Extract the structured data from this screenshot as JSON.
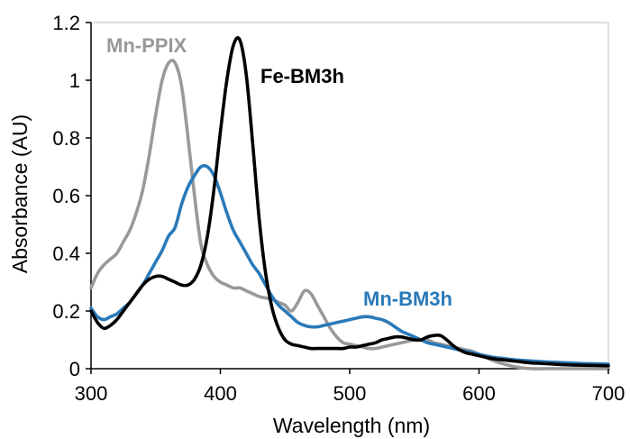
{
  "chart_data": {
    "type": "line",
    "title": "",
    "xlabel": "Wavelength (nm)",
    "ylabel": "Absorbance (AU)",
    "xlim": [
      300,
      700
    ],
    "ylim": [
      0,
      1.2
    ],
    "x_ticks": [
      300,
      400,
      500,
      600,
      700
    ],
    "y_ticks": [
      0,
      0.2,
      0.4,
      0.6,
      0.8,
      1.0,
      1.2
    ],
    "x_tick_labels": [
      "300",
      "400",
      "500",
      "600",
      "700"
    ],
    "y_tick_labels": [
      "0",
      "0.2",
      "0.4",
      "0.6",
      "0.8",
      "1",
      "1.2"
    ],
    "grid": false,
    "legend": "inline labels",
    "series": [
      {
        "name": "Mn-PPIX",
        "color": "#999999",
        "label_color": "#999999",
        "x": [
          300,
          305,
          310,
          315,
          320,
          325,
          330,
          335,
          340,
          345,
          350,
          355,
          360,
          365,
          370,
          375,
          380,
          385,
          390,
          395,
          400,
          405,
          410,
          415,
          420,
          425,
          430,
          435,
          440,
          445,
          450,
          455,
          460,
          465,
          470,
          475,
          480,
          485,
          490,
          495,
          500,
          505,
          510,
          515,
          520,
          525,
          530,
          535,
          540,
          545,
          550,
          555,
          560,
          565,
          570,
          575,
          580,
          585,
          590,
          595,
          600,
          610,
          620,
          630,
          640,
          650,
          660,
          670,
          680,
          690,
          700
        ],
        "y": [
          0.28,
          0.33,
          0.36,
          0.38,
          0.4,
          0.44,
          0.48,
          0.54,
          0.62,
          0.74,
          0.88,
          1.0,
          1.06,
          1.06,
          0.98,
          0.8,
          0.6,
          0.43,
          0.36,
          0.32,
          0.3,
          0.29,
          0.28,
          0.28,
          0.27,
          0.26,
          0.25,
          0.245,
          0.24,
          0.23,
          0.22,
          0.2,
          0.23,
          0.27,
          0.26,
          0.22,
          0.18,
          0.14,
          0.11,
          0.09,
          0.085,
          0.08,
          0.075,
          0.07,
          0.07,
          0.075,
          0.08,
          0.085,
          0.09,
          0.095,
          0.1,
          0.1,
          0.1,
          0.09,
          0.085,
          0.08,
          0.075,
          0.07,
          0.065,
          0.06,
          0.05,
          0.03,
          0.015,
          0.005,
          0.0,
          0.0,
          0.0,
          0.0,
          0.0,
          0.0,
          0.0
        ]
      },
      {
        "name": "Fe-BM3h",
        "color": "#000000",
        "label_color": "#000000",
        "x": [
          300,
          305,
          310,
          315,
          320,
          325,
          330,
          335,
          340,
          345,
          350,
          355,
          360,
          365,
          370,
          375,
          380,
          385,
          390,
          395,
          400,
          405,
          410,
          415,
          420,
          425,
          430,
          435,
          440,
          445,
          450,
          455,
          460,
          465,
          470,
          475,
          480,
          485,
          490,
          495,
          500,
          505,
          510,
          515,
          520,
          525,
          530,
          535,
          540,
          545,
          550,
          555,
          560,
          565,
          570,
          575,
          580,
          585,
          590,
          595,
          600,
          610,
          620,
          630,
          640,
          650,
          660,
          670,
          680,
          690,
          700
        ],
        "y": [
          0.2,
          0.16,
          0.14,
          0.15,
          0.17,
          0.2,
          0.23,
          0.26,
          0.29,
          0.31,
          0.32,
          0.32,
          0.31,
          0.3,
          0.29,
          0.29,
          0.31,
          0.36,
          0.46,
          0.62,
          0.82,
          1.0,
          1.12,
          1.14,
          1.02,
          0.78,
          0.52,
          0.33,
          0.21,
          0.14,
          0.1,
          0.085,
          0.08,
          0.075,
          0.07,
          0.07,
          0.07,
          0.07,
          0.07,
          0.07,
          0.075,
          0.075,
          0.08,
          0.085,
          0.09,
          0.1,
          0.105,
          0.11,
          0.11,
          0.105,
          0.1,
          0.1,
          0.11,
          0.115,
          0.115,
          0.1,
          0.08,
          0.065,
          0.055,
          0.05,
          0.045,
          0.035,
          0.03,
          0.025,
          0.02,
          0.018,
          0.015,
          0.013,
          0.012,
          0.011,
          0.01
        ]
      },
      {
        "name": "Mn-BM3h",
        "color": "#2a7ab9",
        "label_color": "#2a7ab9",
        "x": [
          300,
          305,
          310,
          315,
          320,
          325,
          330,
          335,
          340,
          345,
          350,
          355,
          360,
          365,
          370,
          375,
          380,
          385,
          390,
          395,
          400,
          405,
          410,
          415,
          420,
          425,
          430,
          435,
          440,
          445,
          450,
          455,
          460,
          465,
          470,
          475,
          480,
          485,
          490,
          495,
          500,
          505,
          510,
          515,
          520,
          525,
          530,
          535,
          540,
          545,
          550,
          555,
          560,
          565,
          570,
          575,
          580,
          585,
          590,
          595,
          600,
          610,
          620,
          630,
          640,
          650,
          660,
          670,
          680,
          690,
          700
        ],
        "y": [
          0.21,
          0.18,
          0.17,
          0.18,
          0.19,
          0.21,
          0.23,
          0.26,
          0.29,
          0.33,
          0.37,
          0.41,
          0.46,
          0.49,
          0.57,
          0.63,
          0.67,
          0.7,
          0.7,
          0.67,
          0.61,
          0.54,
          0.48,
          0.44,
          0.4,
          0.36,
          0.33,
          0.29,
          0.25,
          0.22,
          0.2,
          0.18,
          0.16,
          0.15,
          0.145,
          0.145,
          0.15,
          0.155,
          0.16,
          0.165,
          0.17,
          0.175,
          0.18,
          0.18,
          0.175,
          0.17,
          0.16,
          0.145,
          0.13,
          0.12,
          0.11,
          0.1,
          0.09,
          0.085,
          0.08,
          0.075,
          0.07,
          0.065,
          0.06,
          0.055,
          0.05,
          0.04,
          0.035,
          0.03,
          0.027,
          0.024,
          0.022,
          0.02,
          0.018,
          0.017,
          0.016
        ]
      }
    ]
  }
}
